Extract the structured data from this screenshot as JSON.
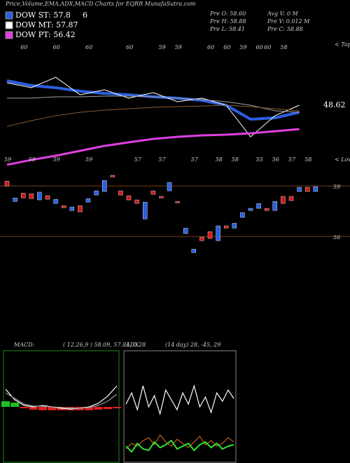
{
  "header": {
    "title": "Price,Volume,EMA,ADX,MACD Charts for EQRR MunafaSutra.com"
  },
  "legend": [
    {
      "name": "DOW ST: 57.8",
      "color": "#2a5fe0"
    },
    {
      "name": "DOW MT: 57.87",
      "color": "#ffffff"
    },
    {
      "name": "DOW PT: 56.42",
      "color": "#e040e0"
    }
  ],
  "legend_note": "6",
  "info": [
    "Pre O: 58.60",
    "Avg V: 0 M",
    "Pre H: 58.88",
    "Pre V: 0.012 M",
    "Pre L: 58.41",
    "Pre C: 58.88"
  ],
  "chart_data": [
    {
      "type": "line",
      "annotation": "48.62",
      "tops_marker": "< Tops",
      "lows_marker": "< Lows",
      "x": [
        0,
        3,
        6,
        9,
        12,
        15,
        18,
        21,
        24,
        27,
        30,
        33,
        36
      ],
      "xlim": [
        0,
        38
      ],
      "ylim": [
        52,
        62
      ],
      "series": [
        {
          "name": "ST",
          "color": "#2a5fe0",
          "values": [
            58.94,
            58.56,
            58.39,
            58.11,
            57.94,
            57.83,
            57.67,
            57.56,
            57.39,
            57,
            55.89,
            56,
            56.44
          ]
        },
        {
          "name": "Price",
          "color": "#ffffff",
          "values": [
            58.78,
            58.39,
            59.22,
            57.83,
            58.22,
            57.56,
            58,
            57.28,
            57.56,
            57,
            54.5,
            56.17,
            57
          ]
        },
        {
          "name": "MT",
          "color": "#a0a0a0",
          "values": [
            57.56,
            57.56,
            57.67,
            57.67,
            57.72,
            57.72,
            57.67,
            57.56,
            57.44,
            57.28,
            57,
            56.56,
            56.44
          ]
        },
        {
          "name": "LT",
          "color": "#8b5a2b",
          "values": [
            55.33,
            55.78,
            56.17,
            56.44,
            56.61,
            56.72,
            56.83,
            56.89,
            56.94,
            57,
            56.89,
            56.72,
            56.56
          ]
        },
        {
          "name": "PT",
          "color": "#e040e0",
          "values": [
            52.28,
            52.67,
            53,
            53.39,
            53.78,
            54.06,
            54.33,
            54.5,
            54.61,
            54.67,
            54.78,
            54.94,
            55.11
          ]
        }
      ]
    },
    {
      "type": "candlestick",
      "ylim": [
        54.63,
        59.42
      ],
      "yticks": [
        56,
        59
      ],
      "up_color": "#2a5fe0",
      "down_color": "#d01818",
      "open": [
        59.29,
        58.08,
        58.58,
        58.54,
        58.17,
        58.42,
        57.96,
        57.83,
        57.54,
        57.83,
        58.04,
        58.46,
        58.67,
        59.63,
        58.71,
        58.42,
        58.17,
        57.04,
        58.71,
        58.38,
        58.71,
        58.08,
        56.17,
        55.04,
        55.96,
        56.29,
        55.75,
        56.63,
        56.5,
        57.13,
        57.54,
        57.67,
        57.67,
        57.54,
        58.38,
        58.38,
        58.67,
        58.92,
        58.67
      ],
      "close": [
        59,
        58.29,
        58.29,
        58.25,
        58.63,
        58.21,
        58.21,
        57.71,
        57.75,
        57.46,
        58.25,
        58.71,
        59.33,
        59.54,
        58.46,
        58.17,
        57.96,
        58.04,
        58.5,
        58.29,
        59.21,
        58,
        56.5,
        55.25,
        55.75,
        55.88,
        56.63,
        56.5,
        56.79,
        57.42,
        57.67,
        57.96,
        57.54,
        58.08,
        57.96,
        58.13,
        58.92,
        58.67,
        58.96
      ],
      "tops": [
        null,
        null,
        60,
        null,
        null,
        null,
        60,
        null,
        null,
        null,
        60,
        null,
        null,
        null,
        null,
        60,
        null,
        null,
        null,
        59,
        null,
        59,
        null,
        null,
        null,
        60,
        null,
        60,
        null,
        59,
        null,
        60,
        60,
        null,
        58,
        null,
        null,
        null,
        null
      ],
      "lows": [
        59,
        null,
        null,
        59,
        null,
        null,
        59,
        null,
        null,
        null,
        59,
        null,
        null,
        null,
        null,
        null,
        57,
        null,
        null,
        57,
        null,
        null,
        null,
        57,
        null,
        null,
        58,
        null,
        58,
        null,
        null,
        55,
        null,
        56,
        null,
        57,
        null,
        58,
        null
      ]
    },
    {
      "type": "macd",
      "label": "MACD:",
      "params": "( 12,26,9 ) 58.09, 57.81, 0.28",
      "x": [
        0,
        1,
        2,
        3,
        4,
        5,
        6,
        7,
        8,
        9,
        10,
        11,
        12
      ],
      "xlim": [
        0,
        12
      ],
      "ylim": [
        -2,
        2
      ],
      "series": [
        {
          "name": "MACD",
          "color": "#ffffff",
          "values": [
            0.63,
            0.25,
            0.05,
            0,
            0.05,
            0,
            -0.05,
            -0.08,
            -0.05,
            0,
            0.13,
            0.38,
            0.75
          ]
        },
        {
          "name": "Signal",
          "color": "#9a9a9a",
          "values": [
            0.5,
            0.3,
            0.1,
            0.03,
            0.02,
            0,
            -0.02,
            -0.05,
            -0.05,
            -0.02,
            0.05,
            0.2,
            0.45
          ]
        }
      ],
      "histogram": [
        0.2,
        0.15,
        -0.05,
        -0.1,
        -0.12,
        -0.12,
        -0.12,
        -0.12,
        -0.12,
        -0.12,
        -0.1,
        -0.08,
        -0.05
      ]
    },
    {
      "type": "adx",
      "label": "ADX",
      "params": "(14 day) 28, -45, 29",
      "x": [
        0,
        1,
        2,
        3,
        4,
        5,
        6,
        7,
        8,
        9,
        10,
        11,
        12,
        13,
        14,
        15,
        16,
        17,
        18,
        19
      ],
      "xlim": [
        0,
        19
      ],
      "ylim": [
        0,
        80
      ],
      "series": [
        {
          "name": "ADX",
          "color": "#ffffff",
          "values": [
            42,
            50,
            38,
            55,
            40,
            48,
            35,
            52,
            45,
            38,
            50,
            42,
            55,
            40,
            47,
            36,
            50,
            44,
            52,
            46
          ]
        },
        {
          "name": "-DI",
          "color": "#e07020",
          "values": [
            10,
            14,
            12,
            16,
            18,
            13,
            20,
            15,
            12,
            17,
            14,
            11,
            15,
            19,
            13,
            16,
            12,
            14,
            18,
            15
          ]
        },
        {
          "name": "+DI",
          "color": "#30e030",
          "values": [
            12,
            8,
            14,
            10,
            9,
            15,
            11,
            13,
            16,
            10,
            12,
            14,
            9,
            13,
            15,
            11,
            14,
            10,
            12,
            13
          ]
        }
      ]
    }
  ]
}
